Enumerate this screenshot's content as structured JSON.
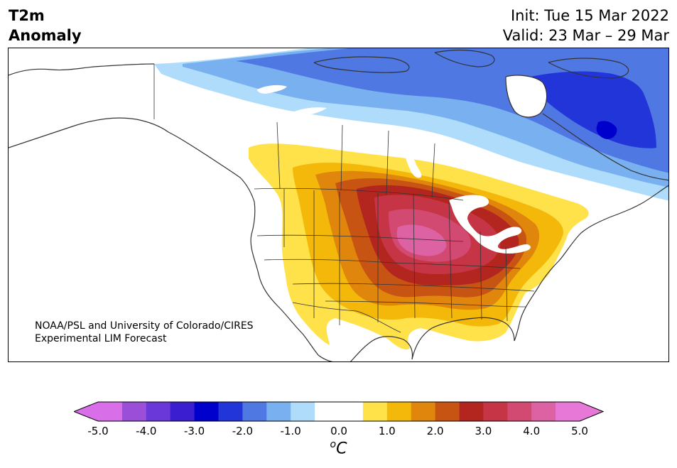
{
  "title": {
    "line1": "T2m",
    "line2": "Anomaly"
  },
  "header": {
    "init": "Init: Tue 15 Mar 2022",
    "valid": "Valid: 23 Mar – 29 Mar"
  },
  "credit": {
    "line1": "NOAA/PSL and University of Colorado/CIRES",
    "line2": "Experimental LIM Forecast"
  },
  "colorbar": {
    "min": -5.0,
    "max": 5.0,
    "step": 0.5,
    "colors": [
      "#d86ee8",
      "#9b4fd9",
      "#6a38d8",
      "#3a1ed0",
      "#0000cc",
      "#2235d8",
      "#4f78e2",
      "#78b0f0",
      "#afdcfb",
      "#ffffff",
      "#ffffff",
      "#ffe14a",
      "#f3b80a",
      "#e0860c",
      "#c85414",
      "#b3261f",
      "#c63546",
      "#d24a72",
      "#dc62a4",
      "#e878d8"
    ],
    "over_color": "#e878d8",
    "under_color": "#d86ee8",
    "tick_labels": [
      "-5.0",
      "-4.0",
      "-3.0",
      "-2.0",
      "-1.0",
      "0.0",
      "1.0",
      "2.0",
      "3.0",
      "4.0",
      "5.0"
    ],
    "unit_prefix": "o",
    "unit": "C"
  },
  "map_palette": {
    "blue1": "#afdcfb",
    "blue2": "#78b0f0",
    "blue3": "#4f78e2",
    "blue4": "#2235d8",
    "blue5": "#0000cc",
    "warm1": "#ffe14a",
    "warm2": "#f3b80a",
    "warm3": "#e0860c",
    "warm4": "#c85414",
    "warm5": "#b3261f",
    "warm6": "#c63546",
    "warm7": "#d24a72",
    "warm8": "#dc62a4",
    "coast": "#333333"
  }
}
